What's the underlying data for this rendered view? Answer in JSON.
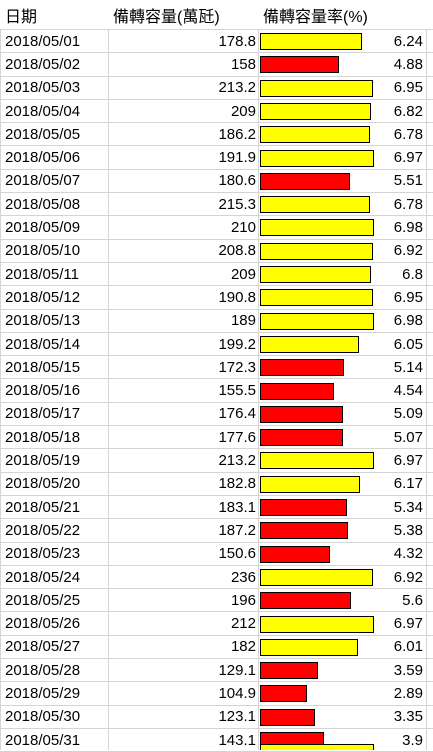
{
  "sheet": {
    "headers": {
      "date": "日期",
      "capacity": "備轉容量(萬瓩)",
      "rate": "備轉容量率(%)"
    },
    "colors": {
      "high": "#ffff00",
      "low": "#ff0000"
    },
    "bar_max_rate": 7.0,
    "rows": [
      {
        "date": "2018/05/01",
        "capacity": "178.8",
        "rate": "6.24",
        "rate_value": 6.24,
        "status": "high"
      },
      {
        "date": "2018/05/02",
        "capacity": "158",
        "rate": "4.88",
        "rate_value": 4.88,
        "status": "low"
      },
      {
        "date": "2018/05/03",
        "capacity": "213.2",
        "rate": "6.95",
        "rate_value": 6.95,
        "status": "high"
      },
      {
        "date": "2018/05/04",
        "capacity": "209",
        "rate": "6.82",
        "rate_value": 6.82,
        "status": "high"
      },
      {
        "date": "2018/05/05",
        "capacity": "186.2",
        "rate": "6.78",
        "rate_value": 6.78,
        "status": "high"
      },
      {
        "date": "2018/05/06",
        "capacity": "191.9",
        "rate": "6.97",
        "rate_value": 6.97,
        "status": "high"
      },
      {
        "date": "2018/05/07",
        "capacity": "180.6",
        "rate": "5.51",
        "rate_value": 5.51,
        "status": "low"
      },
      {
        "date": "2018/05/08",
        "capacity": "215.3",
        "rate": "6.78",
        "rate_value": 6.78,
        "status": "high"
      },
      {
        "date": "2018/05/09",
        "capacity": "210",
        "rate": "6.98",
        "rate_value": 6.98,
        "status": "high"
      },
      {
        "date": "2018/05/10",
        "capacity": "208.8",
        "rate": "6.92",
        "rate_value": 6.92,
        "status": "high"
      },
      {
        "date": "2018/05/11",
        "capacity": "209",
        "rate": "6.8",
        "rate_value": 6.8,
        "status": "high"
      },
      {
        "date": "2018/05/12",
        "capacity": "190.8",
        "rate": "6.95",
        "rate_value": 6.95,
        "status": "high"
      },
      {
        "date": "2018/05/13",
        "capacity": "189",
        "rate": "6.98",
        "rate_value": 6.98,
        "status": "high"
      },
      {
        "date": "2018/05/14",
        "capacity": "199.2",
        "rate": "6.05",
        "rate_value": 6.05,
        "status": "high"
      },
      {
        "date": "2018/05/15",
        "capacity": "172.3",
        "rate": "5.14",
        "rate_value": 5.14,
        "status": "low"
      },
      {
        "date": "2018/05/16",
        "capacity": "155.5",
        "rate": "4.54",
        "rate_value": 4.54,
        "status": "low"
      },
      {
        "date": "2018/05/17",
        "capacity": "176.4",
        "rate": "5.09",
        "rate_value": 5.09,
        "status": "low"
      },
      {
        "date": "2018/05/18",
        "capacity": "177.6",
        "rate": "5.07",
        "rate_value": 5.07,
        "status": "low"
      },
      {
        "date": "2018/05/19",
        "capacity": "213.2",
        "rate": "6.97",
        "rate_value": 6.97,
        "status": "high"
      },
      {
        "date": "2018/05/20",
        "capacity": "182.8",
        "rate": "6.17",
        "rate_value": 6.17,
        "status": "high"
      },
      {
        "date": "2018/05/21",
        "capacity": "183.1",
        "rate": "5.34",
        "rate_value": 5.34,
        "status": "low"
      },
      {
        "date": "2018/05/22",
        "capacity": "187.2",
        "rate": "5.38",
        "rate_value": 5.38,
        "status": "low"
      },
      {
        "date": "2018/05/23",
        "capacity": "150.6",
        "rate": "4.32",
        "rate_value": 4.32,
        "status": "low"
      },
      {
        "date": "2018/05/24",
        "capacity": "236",
        "rate": "6.92",
        "rate_value": 6.92,
        "status": "high"
      },
      {
        "date": "2018/05/25",
        "capacity": "196",
        "rate": "5.6",
        "rate_value": 5.6,
        "status": "low"
      },
      {
        "date": "2018/05/26",
        "capacity": "212",
        "rate": "6.97",
        "rate_value": 6.97,
        "status": "high"
      },
      {
        "date": "2018/05/27",
        "capacity": "182",
        "rate": "6.01",
        "rate_value": 6.01,
        "status": "high"
      },
      {
        "date": "2018/05/28",
        "capacity": "129.1",
        "rate": "3.59",
        "rate_value": 3.59,
        "status": "low"
      },
      {
        "date": "2018/05/29",
        "capacity": "104.9",
        "rate": "2.89",
        "rate_value": 2.89,
        "status": "low"
      },
      {
        "date": "2018/05/30",
        "capacity": "123.1",
        "rate": "3.35",
        "rate_value": 3.35,
        "status": "low"
      },
      {
        "date": "2018/05/31",
        "capacity": "143.1",
        "rate": "3.9",
        "rate_value": 3.9,
        "status": "low"
      }
    ]
  }
}
